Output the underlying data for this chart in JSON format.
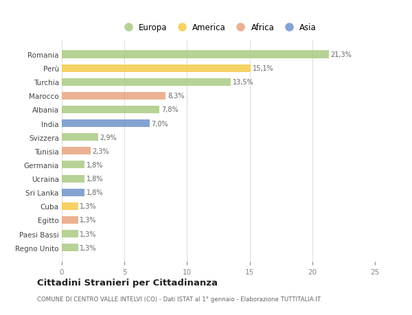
{
  "countries": [
    "Romania",
    "Perù",
    "Turchia",
    "Marocco",
    "Albania",
    "India",
    "Svizzera",
    "Tunisia",
    "Germania",
    "Ucraina",
    "Sri Lanka",
    "Cuba",
    "Egitto",
    "Paesi Bassi",
    "Regno Unito"
  ],
  "values": [
    21.3,
    15.1,
    13.5,
    8.3,
    7.8,
    7.0,
    2.9,
    2.3,
    1.8,
    1.8,
    1.8,
    1.3,
    1.3,
    1.3,
    1.3
  ],
  "labels": [
    "21,3%",
    "15,1%",
    "13,5%",
    "8,3%",
    "7,8%",
    "7,0%",
    "2,9%",
    "2,3%",
    "1,8%",
    "1,8%",
    "1,8%",
    "1,3%",
    "1,3%",
    "1,3%",
    "1,3%"
  ],
  "continents": [
    "Europa",
    "America",
    "Europa",
    "Africa",
    "Europa",
    "Asia",
    "Europa",
    "Africa",
    "Europa",
    "Europa",
    "Asia",
    "America",
    "Africa",
    "Europa",
    "Europa"
  ],
  "colors": {
    "Europa": "#a8c97f",
    "America": "#f5c842",
    "Africa": "#e8a07a",
    "Asia": "#6a8fc8"
  },
  "legend_order": [
    "Europa",
    "America",
    "Africa",
    "Asia"
  ],
  "title": "Cittadini Stranieri per Cittadinanza",
  "subtitle": "COMUNE DI CENTRO VALLE INTELVI (CO) - Dati ISTAT al 1° gennaio - Elaborazione TUTTITALIA.IT",
  "xlim": [
    0,
    25
  ],
  "xticks": [
    0,
    5,
    10,
    15,
    20,
    25
  ],
  "bg_color": "#ffffff",
  "grid_color": "#dddddd",
  "bar_alpha": 0.82
}
